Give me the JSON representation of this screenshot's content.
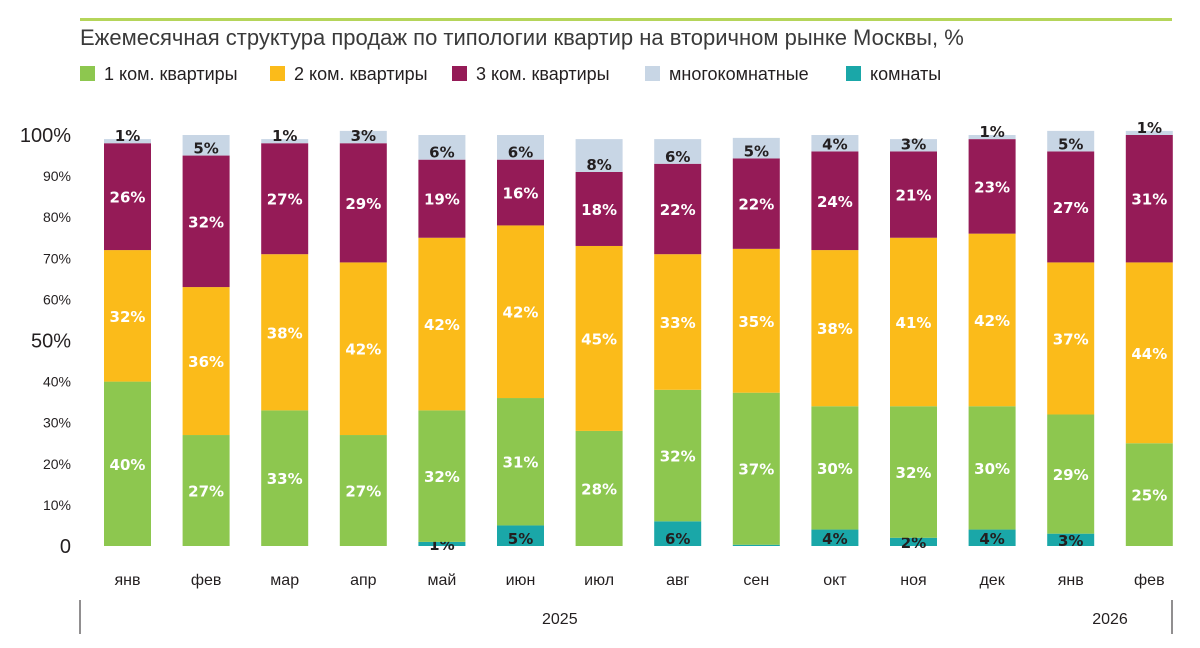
{
  "chart_data": {
    "type": "bar",
    "stacked": true,
    "title": "Ежемесячная структура продаж по типологии квартир на вторичном рынке Москвы, %",
    "ylim": [
      0,
      100
    ],
    "yticks": [
      {
        "value": 0,
        "label": "0",
        "major": true
      },
      {
        "value": 10,
        "label": "10%",
        "major": false
      },
      {
        "value": 20,
        "label": "20%",
        "major": false
      },
      {
        "value": 30,
        "label": "30%",
        "major": false
      },
      {
        "value": 40,
        "label": "40%",
        "major": false
      },
      {
        "value": 50,
        "label": "50%",
        "major": true
      },
      {
        "value": 60,
        "label": "60%",
        "major": false
      },
      {
        "value": 70,
        "label": "70%",
        "major": false
      },
      {
        "value": 80,
        "label": "80%",
        "major": false
      },
      {
        "value": 90,
        "label": "90%",
        "major": false
      },
      {
        "value": 100,
        "label": "100%",
        "major": true
      }
    ],
    "categories": [
      "янв",
      "фев",
      "мар",
      "апр",
      "май",
      "июн",
      "июл",
      "авг",
      "сен",
      "окт",
      "ноя",
      "дек",
      "янв",
      "фев"
    ],
    "years": [
      {
        "label": "2025",
        "from": 0,
        "to": 11
      },
      {
        "label": "2026",
        "from": 12,
        "to": 13
      }
    ],
    "legend": [
      "1 ком. квартиры",
      "2 ком. квартиры",
      "3 ком. квартиры",
      "многокомнатные",
      "комнаты"
    ],
    "series": [
      {
        "name": "комнаты",
        "color": "#1aa7a8",
        "label_pos": "inside-dark",
        "values": [
          0,
          0,
          0,
          0,
          1,
          5,
          0,
          6,
          0.3,
          4,
          2,
          4,
          3,
          0
        ],
        "labels": [
          "",
          "",
          "",
          "",
          "1%",
          "5%",
          "",
          "6%",
          "",
          "4%",
          "2%",
          "4%",
          "3%",
          ""
        ]
      },
      {
        "name": "1 ком. квартиры",
        "color": "#8dc74f",
        "label_pos": "inside",
        "values": [
          40,
          27,
          33,
          27,
          32,
          31,
          28,
          32,
          37,
          30,
          32,
          30,
          29,
          25
        ],
        "labels": [
          "40%",
          "27%",
          "33%",
          "27%",
          "32%",
          "31%",
          "28%",
          "32%",
          "37%",
          "30%",
          "32%",
          "30%",
          "29%",
          "25%"
        ]
      },
      {
        "name": "2 ком. квартиры",
        "color": "#fbbb1a",
        "label_pos": "inside",
        "values": [
          32,
          36,
          38,
          42,
          42,
          42,
          45,
          33,
          35,
          38,
          41,
          42,
          37,
          44
        ],
        "labels": [
          "32%",
          "36%",
          "38%",
          "42%",
          "42%",
          "42%",
          "45%",
          "33%",
          "35%",
          "38%",
          "41%",
          "42%",
          "37%",
          "44%"
        ]
      },
      {
        "name": "3 ком. квартиры",
        "color": "#951b57",
        "label_pos": "inside",
        "values": [
          26,
          32,
          27,
          29,
          19,
          16,
          18,
          22,
          22,
          24,
          21,
          23,
          27,
          31
        ],
        "labels": [
          "26%",
          "32%",
          "27%",
          "29%",
          "19%",
          "16%",
          "18%",
          "22%",
          "22%",
          "24%",
          "21%",
          "23%",
          "27%",
          "31%"
        ]
      },
      {
        "name": "многокомнатные",
        "color": "#c8d6e5",
        "label_pos": "top",
        "values": [
          1,
          5,
          1,
          3,
          6,
          6,
          8,
          6,
          5,
          4,
          3,
          1,
          5,
          1
        ],
        "labels": [
          "1%",
          "5%",
          "1%",
          "3%",
          "6%",
          "6%",
          "8%",
          "6%",
          "5%",
          "4%",
          "3%",
          "1%",
          "5%",
          "1%"
        ]
      }
    ]
  }
}
